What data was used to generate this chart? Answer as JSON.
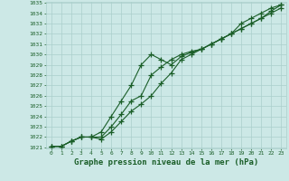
{
  "x": [
    0,
    1,
    2,
    3,
    4,
    5,
    6,
    7,
    8,
    9,
    10,
    11,
    12,
    13,
    14,
    15,
    16,
    17,
    18,
    19,
    20,
    21,
    22,
    23
  ],
  "line1": [
    1021.1,
    1021.1,
    1021.6,
    1022.0,
    1022.0,
    1022.5,
    1024.0,
    1025.5,
    1027.0,
    1029.0,
    1030.0,
    1029.5,
    1029.0,
    1029.8,
    1030.2,
    1030.5,
    1031.0,
    1031.5,
    1032.0,
    1033.0,
    1033.5,
    1034.0,
    1034.5,
    1034.8
  ],
  "line2": [
    1021.1,
    1021.1,
    1021.6,
    1022.0,
    1022.0,
    1022.0,
    1023.0,
    1024.2,
    1025.5,
    1026.0,
    1028.0,
    1028.8,
    1029.5,
    1030.0,
    1030.3,
    1030.5,
    1031.0,
    1031.5,
    1032.0,
    1032.5,
    1033.0,
    1033.5,
    1034.0,
    1034.5
  ],
  "line3": [
    1021.1,
    1021.1,
    1021.6,
    1022.0,
    1022.0,
    1021.8,
    1022.5,
    1023.5,
    1024.5,
    1025.2,
    1026.0,
    1027.2,
    1028.2,
    1029.5,
    1030.0,
    1030.5,
    1031.0,
    1031.5,
    1032.0,
    1032.5,
    1033.0,
    1033.5,
    1034.2,
    1034.8
  ],
  "ylim": [
    1021,
    1035
  ],
  "xlim": [
    0,
    23
  ],
  "yticks": [
    1021,
    1022,
    1023,
    1024,
    1025,
    1026,
    1027,
    1028,
    1029,
    1030,
    1031,
    1032,
    1033,
    1034,
    1035
  ],
  "xticks": [
    0,
    1,
    2,
    3,
    4,
    5,
    6,
    7,
    8,
    9,
    10,
    11,
    12,
    13,
    14,
    15,
    16,
    17,
    18,
    19,
    20,
    21,
    22,
    23
  ],
  "xlabel": "Graphe pression niveau de la mer (hPa)",
  "bg_color": "#cce8e6",
  "grid_color": "#aacfcc",
  "line_color": "#1a5e28",
  "marker": "+",
  "markersize": 4,
  "linewidth": 0.8,
  "tick_fontsize": 4.5,
  "xlabel_fontsize": 6.5
}
